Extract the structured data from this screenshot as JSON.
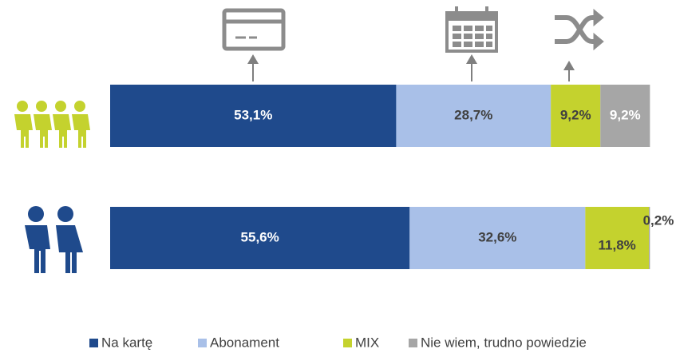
{
  "chart_data": {
    "type": "stacked-barh",
    "categories": [
      null,
      null
    ],
    "xlim": [
      0,
      100
    ],
    "series": [
      {
        "name": "Na kartę",
        "color": "#1f4a8c",
        "values": [
          53.1,
          55.6
        ],
        "value_labels": [
          "53,1%",
          "55,6%"
        ]
      },
      {
        "name": "Abonament",
        "color": "#a9c0e8",
        "values": [
          28.7,
          32.6
        ],
        "value_labels": [
          "28,7%",
          "32,6%"
        ]
      },
      {
        "name": "MIX",
        "color": "#c4d22e",
        "values": [
          9.2,
          11.8
        ],
        "value_labels": [
          "9,2%",
          "11,8%"
        ]
      },
      {
        "name": "Nie wiem, trudno powiedzie",
        "color": "#a6a6a6",
        "values": [
          9.2,
          0.2
        ],
        "value_labels": [
          "9,2%",
          "0,2%"
        ]
      }
    ]
  }
}
